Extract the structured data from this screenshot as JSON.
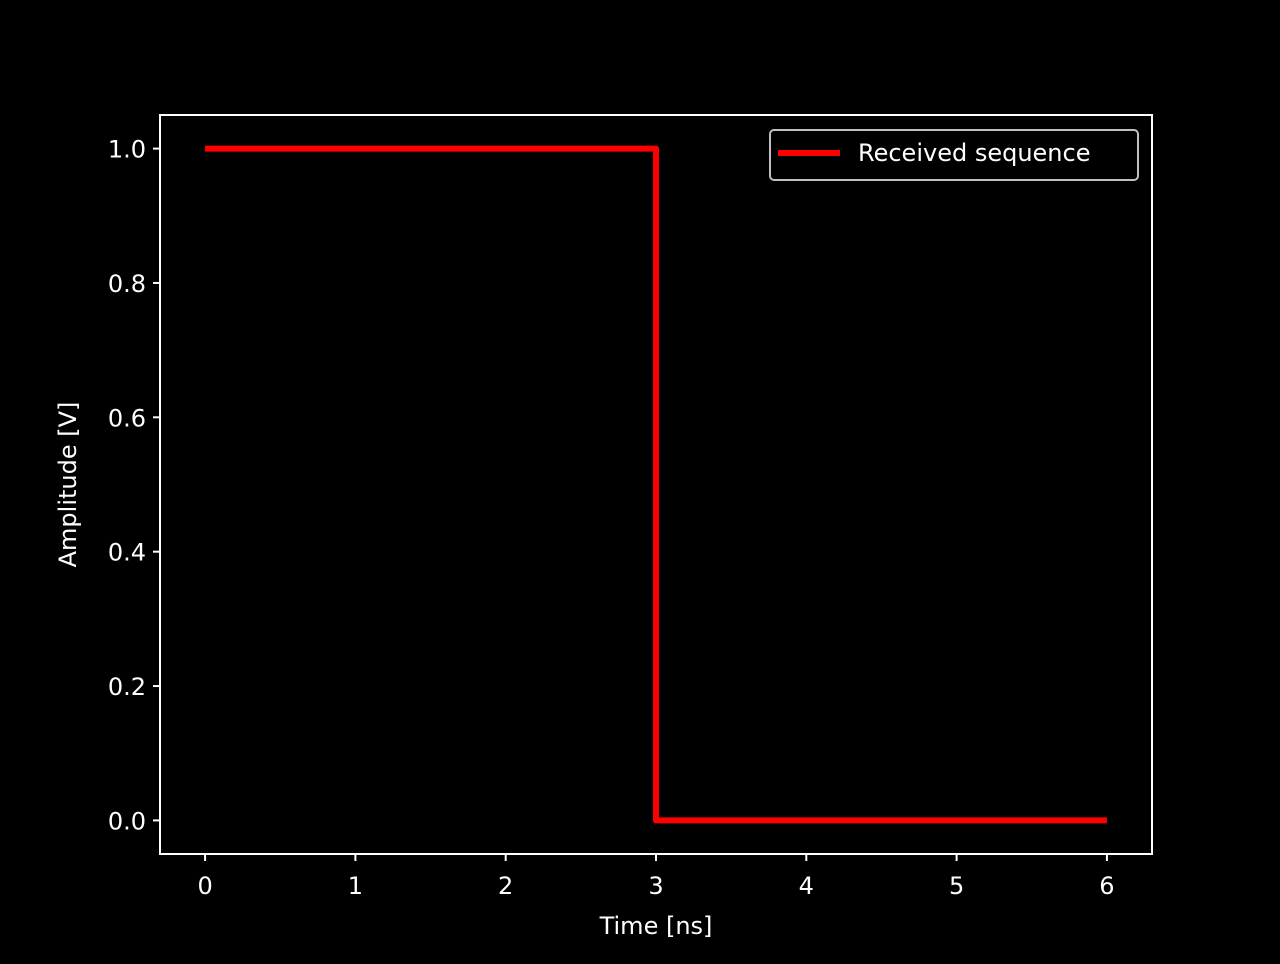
{
  "chart_data": {
    "type": "line",
    "title": "",
    "xlabel": "Time [ns]",
    "ylabel": "Amplitude [V]",
    "xlim": [
      -0.3,
      6.3
    ],
    "ylim": [
      -0.05,
      1.05
    ],
    "xticks": [
      0,
      1,
      2,
      3,
      4,
      5,
      6
    ],
    "xtick_labels": [
      "0",
      "1",
      "2",
      "3",
      "4",
      "5",
      "6"
    ],
    "yticks": [
      0.0,
      0.2,
      0.4,
      0.6,
      0.8,
      1.0
    ],
    "ytick_labels": [
      "0.0",
      "0.2",
      "0.4",
      "0.6",
      "0.8",
      "1.0"
    ],
    "grid": false,
    "legend_position": "top-right",
    "background_color": "#000000",
    "foreground_color": "#ffffff",
    "series": [
      {
        "name": "Received sequence",
        "color": "#ff0000",
        "x": [
          0,
          3,
          3,
          6
        ],
        "y": [
          1,
          1,
          0,
          0
        ]
      }
    ]
  }
}
